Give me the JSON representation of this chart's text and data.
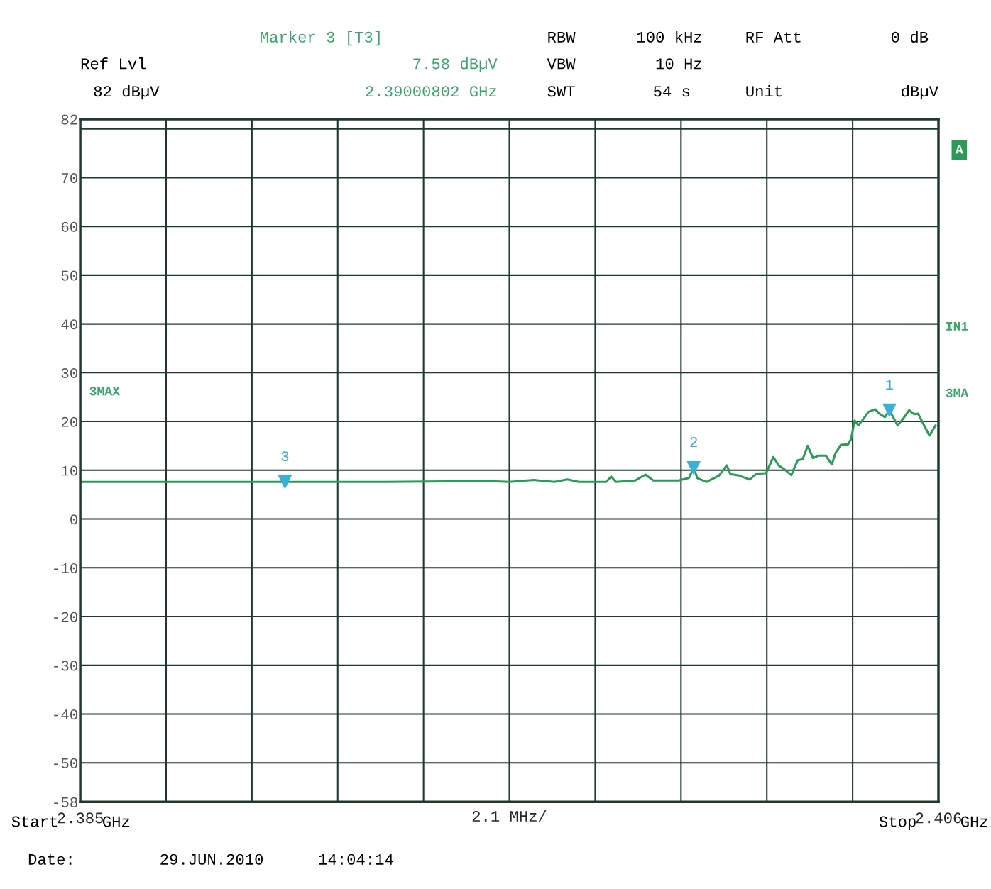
{
  "chart_data": {
    "type": "line",
    "xlabel": "2.1 MHz/",
    "xlim": [
      2.385,
      2.406
    ],
    "xticks": [
      {
        "value": 2.385,
        "label": "2.385"
      },
      {
        "value": 2.3871,
        "label": null
      },
      {
        "value": 2.3892,
        "label": null
      },
      {
        "value": 2.3913,
        "label": null
      },
      {
        "value": 2.3934,
        "label": null
      },
      {
        "value": 2.3955,
        "label": null
      },
      {
        "value": 2.3976,
        "label": null
      },
      {
        "value": 2.3997,
        "label": null
      },
      {
        "value": 2.4018,
        "label": null
      },
      {
        "value": 2.4039,
        "label": null
      },
      2.406
    ],
    "ylim": [
      -58,
      82
    ],
    "yticks": [
      -58,
      -50,
      -40,
      -30,
      -20,
      -10,
      0,
      10,
      20,
      30,
      40,
      50,
      60,
      70,
      {
        "value": 80,
        "label": null
      },
      82
    ],
    "grid": true,
    "series": [
      {
        "color": "#2e9a5a",
        "line_style": "solid",
        "x": [
          2.385,
          2.3925,
          2.39494,
          2.3955,
          2.3961,
          2.3966,
          2.39692,
          2.3972,
          2.39728,
          2.39787,
          2.39799,
          2.39811,
          2.39858,
          2.39883,
          2.39902,
          2.39964,
          2.39989,
          2.40001,
          2.4001,
          2.40032,
          2.40063,
          2.40082,
          2.40091,
          2.40112,
          2.40138,
          2.40155,
          2.40178,
          2.40196,
          2.40209,
          2.40224,
          2.4024,
          2.40255,
          2.40268,
          2.4028,
          2.40293,
          2.40308,
          2.40324,
          2.40339,
          2.40348,
          2.40361,
          2.40379,
          2.40386,
          2.40395,
          2.40404,
          2.40416,
          2.40429,
          2.40445,
          2.40457,
          2.40469,
          2.4048,
          2.405,
          2.40513,
          2.40528,
          2.40541,
          2.4055,
          2.40578,
          2.40593
        ],
        "values": [
          7.6,
          7.6,
          7.8,
          7.6,
          8.0,
          7.6,
          8.1,
          7.6,
          7.6,
          7.6,
          8.7,
          7.6,
          7.9,
          9.1,
          7.9,
          7.9,
          8.4,
          10.5,
          8.4,
          7.6,
          8.9,
          11.0,
          9.2,
          8.9,
          8.1,
          9.3,
          9.4,
          12.7,
          11.0,
          10.1,
          9.0,
          12.0,
          12.3,
          15.0,
          12.5,
          13.0,
          13.0,
          11.2,
          13.5,
          15.2,
          15.3,
          16.4,
          20.2,
          19.2,
          20.5,
          22.0,
          22.5,
          21.5,
          20.9,
          22.3,
          19.2,
          20.5,
          22.3,
          21.5,
          21.6,
          17.1,
          19.2
        ]
      },
      {
        "type": "scatter",
        "color": "#3ab0d8",
        "marker": "triangle",
        "x": [
          2.4048,
          2.40001,
          2.39000802
        ],
        "values": [
          22.3,
          10.5,
          7.6
        ]
      }
    ],
    "annotations": [
      {
        "text": "1",
        "x": 2.4048,
        "y": 22.3
      },
      {
        "text": "2",
        "x": 2.40001,
        "y": 10.5
      },
      {
        "text": "3",
        "x": 2.39000802,
        "y": 7.58
      },
      "Marker 3 [T3]",
      "7.58 dBµV",
      "2.39000802 GHz",
      "Ref Lvl",
      "82 dBµV",
      "RBW",
      "100 kHz",
      "VBW",
      "10 Hz",
      "SWT",
      "54 s",
      "RF Att",
      "0 dB",
      "Unit",
      "dBµV",
      "Date:",
      "29.JUN.2010",
      "14:04:14",
      "3MAX",
      "3MA",
      "IN1",
      "A",
      "Start",
      "GHz",
      "Stop",
      "GHz"
    ]
  }
}
